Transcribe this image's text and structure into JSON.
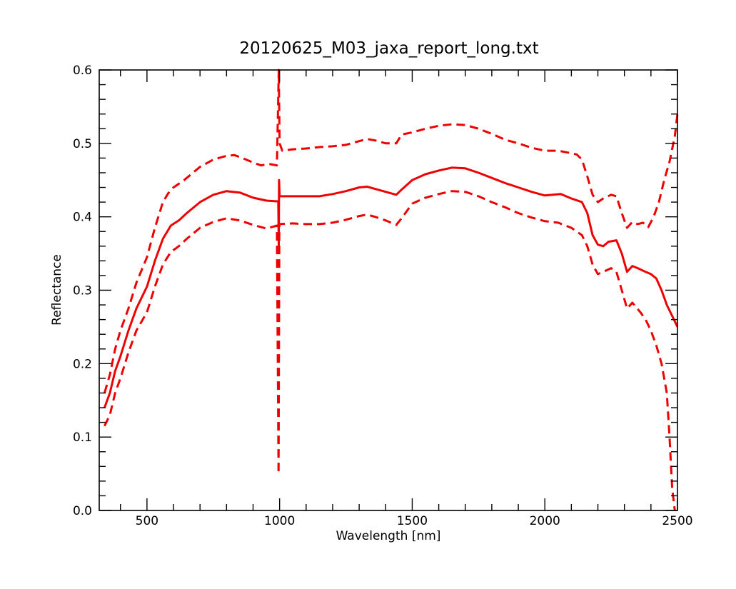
{
  "chart_data": {
    "type": "line",
    "title": "20120625_M03_jaxa_report_long.txt",
    "xlabel": "Wavelength [nm]",
    "ylabel": "Reflectance",
    "xlim": [
      320,
      2500
    ],
    "ylim": [
      0.0,
      0.6
    ],
    "x_major_ticks": [
      500,
      1000,
      1500,
      2000,
      2500
    ],
    "x_tick_labels": [
      "500",
      "1000",
      "1500",
      "2000",
      "2500"
    ],
    "y_major_ticks": [
      0.0,
      0.1,
      0.2,
      0.3,
      0.4,
      0.5,
      0.6
    ],
    "y_tick_labels": [
      "0.0",
      "0.1",
      "0.2",
      "0.3",
      "0.4",
      "0.5",
      "0.6"
    ],
    "grid": false,
    "color": "#ee0000",
    "series": [
      {
        "style": "solid",
        "points": [
          [
            340,
            0.14
          ],
          [
            360,
            0.16
          ],
          [
            380,
            0.19
          ],
          [
            400,
            0.21
          ],
          [
            430,
            0.245
          ],
          [
            460,
            0.275
          ],
          [
            500,
            0.305
          ],
          [
            530,
            0.34
          ],
          [
            560,
            0.37
          ],
          [
            590,
            0.388
          ],
          [
            620,
            0.395
          ],
          [
            650,
            0.405
          ],
          [
            700,
            0.42
          ],
          [
            750,
            0.43
          ],
          [
            800,
            0.435
          ],
          [
            850,
            0.433
          ],
          [
            900,
            0.426
          ],
          [
            950,
            0.422
          ],
          [
            995,
            0.421
          ],
          [
            997,
            0.36
          ],
          [
            998,
            0.45
          ],
          [
            1000,
            0.428
          ],
          [
            1050,
            0.428
          ],
          [
            1100,
            0.428
          ],
          [
            1150,
            0.428
          ],
          [
            1200,
            0.431
          ],
          [
            1250,
            0.435
          ],
          [
            1300,
            0.44
          ],
          [
            1330,
            0.441
          ],
          [
            1360,
            0.438
          ],
          [
            1400,
            0.434
          ],
          [
            1440,
            0.43
          ],
          [
            1460,
            0.437
          ],
          [
            1500,
            0.45
          ],
          [
            1550,
            0.458
          ],
          [
            1600,
            0.463
          ],
          [
            1650,
            0.467
          ],
          [
            1700,
            0.466
          ],
          [
            1750,
            0.46
          ],
          [
            1800,
            0.453
          ],
          [
            1850,
            0.446
          ],
          [
            1900,
            0.44
          ],
          [
            1950,
            0.434
          ],
          [
            2000,
            0.429
          ],
          [
            2030,
            0.43
          ],
          [
            2060,
            0.431
          ],
          [
            2100,
            0.425
          ],
          [
            2140,
            0.42
          ],
          [
            2160,
            0.405
          ],
          [
            2180,
            0.375
          ],
          [
            2200,
            0.362
          ],
          [
            2220,
            0.36
          ],
          [
            2240,
            0.366
          ],
          [
            2270,
            0.368
          ],
          [
            2290,
            0.35
          ],
          [
            2310,
            0.325
          ],
          [
            2330,
            0.333
          ],
          [
            2350,
            0.33
          ],
          [
            2380,
            0.325
          ],
          [
            2400,
            0.322
          ],
          [
            2420,
            0.316
          ],
          [
            2440,
            0.3
          ],
          [
            2460,
            0.28
          ],
          [
            2480,
            0.265
          ],
          [
            2500,
            0.25
          ]
        ]
      },
      {
        "style": "dashed",
        "points": [
          [
            340,
            0.16
          ],
          [
            360,
            0.185
          ],
          [
            380,
            0.22
          ],
          [
            400,
            0.245
          ],
          [
            430,
            0.275
          ],
          [
            460,
            0.31
          ],
          [
            500,
            0.345
          ],
          [
            530,
            0.385
          ],
          [
            560,
            0.42
          ],
          [
            580,
            0.432
          ],
          [
            600,
            0.44
          ],
          [
            640,
            0.45
          ],
          [
            700,
            0.468
          ],
          [
            750,
            0.478
          ],
          [
            800,
            0.483
          ],
          [
            830,
            0.484
          ],
          [
            860,
            0.48
          ],
          [
            900,
            0.474
          ],
          [
            930,
            0.47
          ],
          [
            960,
            0.472
          ],
          [
            990,
            0.47
          ],
          [
            997,
            0.6
          ],
          [
            1000,
            0.5
          ],
          [
            1010,
            0.49
          ],
          [
            1050,
            0.492
          ],
          [
            1100,
            0.493
          ],
          [
            1150,
            0.495
          ],
          [
            1200,
            0.496
          ],
          [
            1250,
            0.498
          ],
          [
            1300,
            0.503
          ],
          [
            1330,
            0.506
          ],
          [
            1360,
            0.504
          ],
          [
            1400,
            0.5
          ],
          [
            1440,
            0.5
          ],
          [
            1460,
            0.512
          ],
          [
            1500,
            0.515
          ],
          [
            1550,
            0.52
          ],
          [
            1600,
            0.524
          ],
          [
            1650,
            0.526
          ],
          [
            1700,
            0.525
          ],
          [
            1750,
            0.52
          ],
          [
            1800,
            0.513
          ],
          [
            1850,
            0.505
          ],
          [
            1900,
            0.5
          ],
          [
            1950,
            0.494
          ],
          [
            2000,
            0.49
          ],
          [
            2050,
            0.49
          ],
          [
            2080,
            0.488
          ],
          [
            2120,
            0.485
          ],
          [
            2140,
            0.478
          ],
          [
            2160,
            0.455
          ],
          [
            2180,
            0.43
          ],
          [
            2200,
            0.42
          ],
          [
            2220,
            0.425
          ],
          [
            2250,
            0.43
          ],
          [
            2270,
            0.428
          ],
          [
            2290,
            0.405
          ],
          [
            2310,
            0.385
          ],
          [
            2330,
            0.393
          ],
          [
            2350,
            0.39
          ],
          [
            2370,
            0.392
          ],
          [
            2390,
            0.386
          ],
          [
            2410,
            0.4
          ],
          [
            2430,
            0.42
          ],
          [
            2450,
            0.45
          ],
          [
            2470,
            0.475
          ],
          [
            2490,
            0.51
          ],
          [
            2500,
            0.54
          ]
        ]
      },
      {
        "style": "dashed",
        "points": [
          [
            340,
            0.115
          ],
          [
            360,
            0.13
          ],
          [
            380,
            0.16
          ],
          [
            400,
            0.18
          ],
          [
            430,
            0.215
          ],
          [
            460,
            0.245
          ],
          [
            500,
            0.27
          ],
          [
            530,
            0.305
          ],
          [
            560,
            0.335
          ],
          [
            590,
            0.352
          ],
          [
            620,
            0.36
          ],
          [
            650,
            0.37
          ],
          [
            700,
            0.385
          ],
          [
            750,
            0.393
          ],
          [
            800,
            0.398
          ],
          [
            850,
            0.395
          ],
          [
            900,
            0.389
          ],
          [
            950,
            0.384
          ],
          [
            990,
            0.388
          ],
          [
            996,
            0.05
          ],
          [
            999,
            0.39
          ],
          [
            1050,
            0.391
          ],
          [
            1100,
            0.39
          ],
          [
            1150,
            0.39
          ],
          [
            1200,
            0.392
          ],
          [
            1250,
            0.396
          ],
          [
            1300,
            0.401
          ],
          [
            1330,
            0.403
          ],
          [
            1360,
            0.4
          ],
          [
            1400,
            0.395
          ],
          [
            1440,
            0.389
          ],
          [
            1460,
            0.398
          ],
          [
            1500,
            0.418
          ],
          [
            1550,
            0.426
          ],
          [
            1600,
            0.431
          ],
          [
            1650,
            0.435
          ],
          [
            1700,
            0.434
          ],
          [
            1750,
            0.428
          ],
          [
            1800,
            0.42
          ],
          [
            1850,
            0.413
          ],
          [
            1900,
            0.405
          ],
          [
            1950,
            0.399
          ],
          [
            2000,
            0.394
          ],
          [
            2050,
            0.392
          ],
          [
            2100,
            0.385
          ],
          [
            2140,
            0.375
          ],
          [
            2160,
            0.36
          ],
          [
            2180,
            0.335
          ],
          [
            2200,
            0.322
          ],
          [
            2220,
            0.325
          ],
          [
            2250,
            0.33
          ],
          [
            2270,
            0.325
          ],
          [
            2290,
            0.3
          ],
          [
            2310,
            0.275
          ],
          [
            2330,
            0.283
          ],
          [
            2360,
            0.27
          ],
          [
            2380,
            0.26
          ],
          [
            2400,
            0.245
          ],
          [
            2420,
            0.225
          ],
          [
            2440,
            0.2
          ],
          [
            2460,
            0.16
          ],
          [
            2470,
            0.1
          ],
          [
            2480,
            0.03
          ],
          [
            2490,
            0.0
          ]
        ]
      }
    ]
  }
}
